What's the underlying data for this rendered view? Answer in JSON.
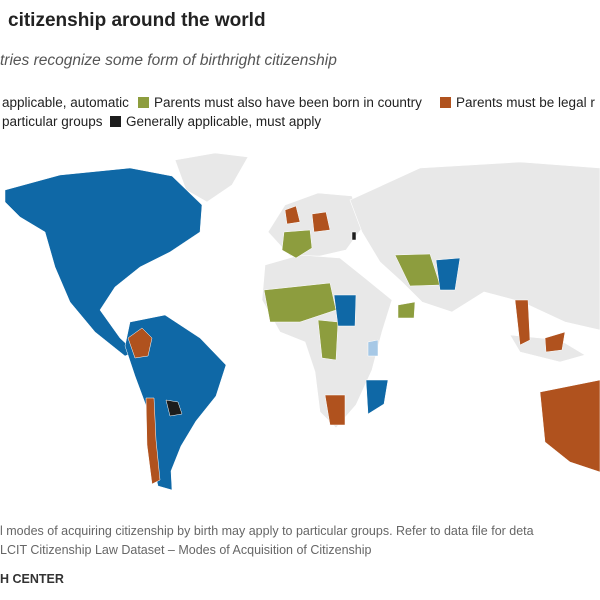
{
  "header": {
    "title": "citizenship around the world",
    "subtitle": "tries recognize some form of birthright citizenship"
  },
  "legend": [
    {
      "label": "applicable, automatic",
      "color": "#0f68a6"
    },
    {
      "label": "Parents must also have been born in country",
      "color": "#8d9d3e"
    },
    {
      "label": "Parents must be legal r",
      "color": "#b0521e"
    },
    {
      "label": "particular groups",
      "color": "#a6c8e6"
    },
    {
      "label": "Generally applicable, must apply",
      "color": "#1c1c1c"
    }
  ],
  "notes": {
    "note": "l modes of acquiring citizenship by birth may apply to particular groups. Refer to data file for deta",
    "source": "LCIT Citizenship Law Dataset – Modes of Acquisition of Citizenship",
    "credit": "H CENTER"
  }
}
